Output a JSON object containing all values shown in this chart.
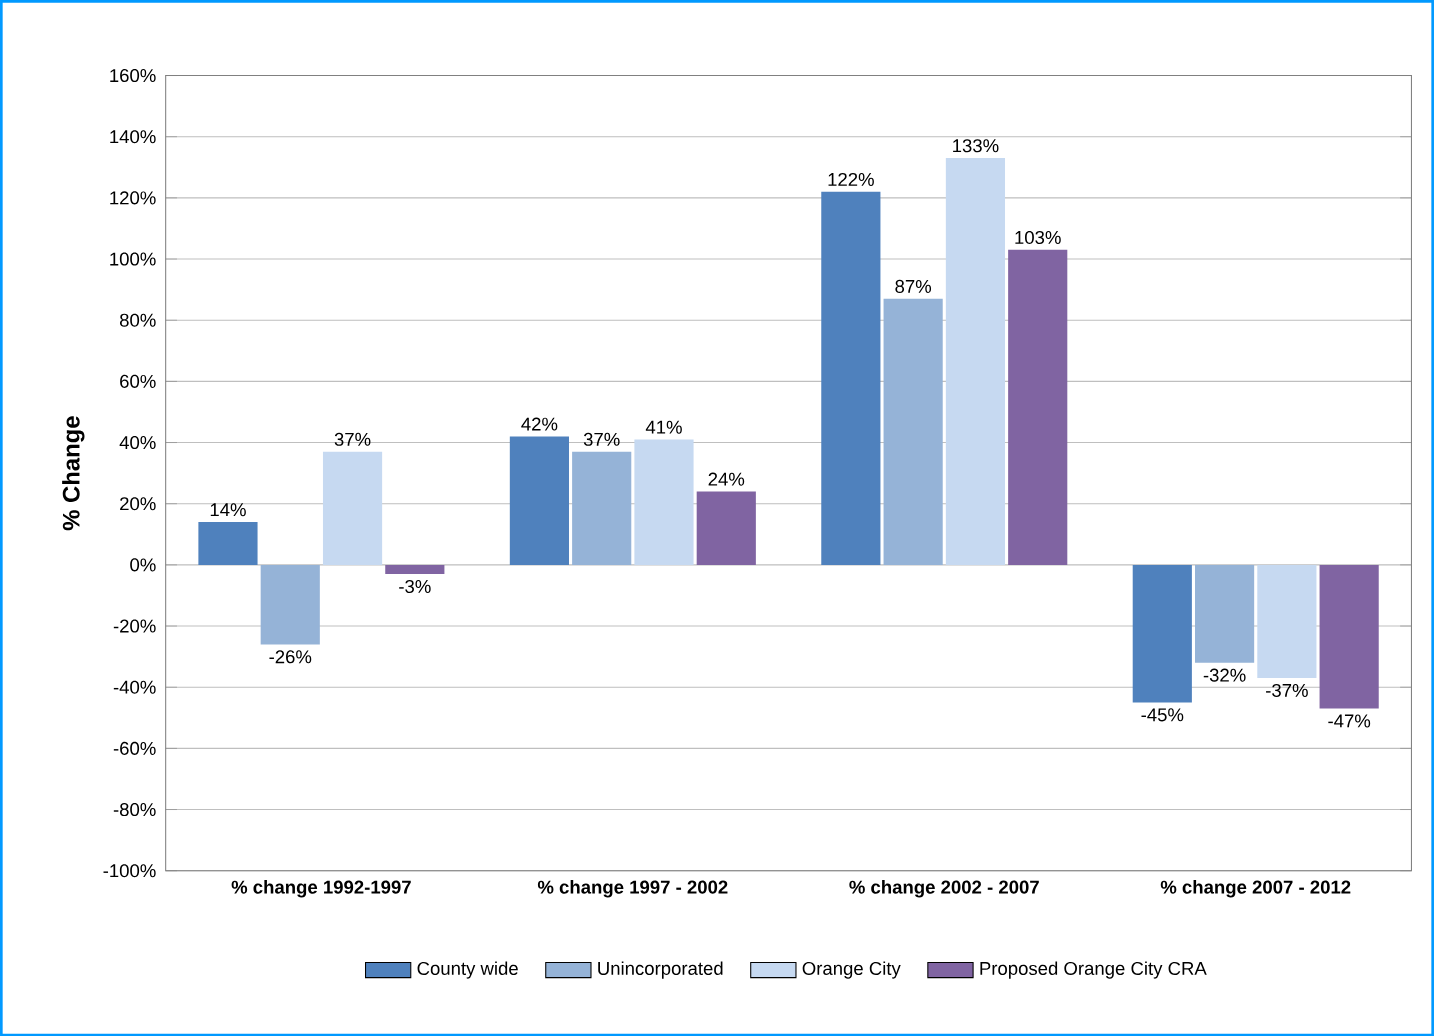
{
  "chart_data": {
    "type": "bar",
    "ylabel": "% Change",
    "categories": [
      "% change 1992-1997",
      "% change 1997 - 2002",
      "% change 2002 - 2007",
      "% change 2007 - 2012"
    ],
    "series": [
      {
        "name": "County wide",
        "color": "#4f81bd",
        "values": [
          14,
          42,
          122,
          -45
        ],
        "value_labels": [
          "14%",
          "42%",
          "122%",
          "-45%"
        ]
      },
      {
        "name": "Unincorporated",
        "color": "#95b3d7",
        "values": [
          -26,
          37,
          87,
          -32
        ],
        "value_labels": [
          "-26%",
          "37%",
          "87%",
          "-32%"
        ]
      },
      {
        "name": "Orange City",
        "color": "#c6d9f1",
        "values": [
          37,
          41,
          133,
          -37
        ],
        "value_labels": [
          "37%",
          "41%",
          "133%",
          "-37%"
        ]
      },
      {
        "name": "Proposed Orange City CRA",
        "color": "#8064a2",
        "values": [
          -3,
          24,
          103,
          -47
        ],
        "value_labels": [
          "-3%",
          "24%",
          "103%",
          "-47%"
        ]
      }
    ],
    "ylim": [
      -100,
      160
    ],
    "yticks": [
      {
        "value": -100,
        "label": "-100%"
      },
      {
        "value": -80,
        "label": "-80%"
      },
      {
        "value": -60,
        "label": "-60%"
      },
      {
        "value": -40,
        "label": "-40%"
      },
      {
        "value": -20,
        "label": "-20%"
      },
      {
        "value": 0,
        "label": "0%"
      },
      {
        "value": 20,
        "label": "20%"
      },
      {
        "value": 40,
        "label": "40%"
      },
      {
        "value": 60,
        "label": "60%"
      },
      {
        "value": 80,
        "label": "80%"
      },
      {
        "value": 100,
        "label": "100%"
      },
      {
        "value": 120,
        "label": "120%"
      },
      {
        "value": 140,
        "label": "140%"
      },
      {
        "value": 160,
        "label": "160%"
      }
    ],
    "grid": "y",
    "legend": "bottom"
  }
}
